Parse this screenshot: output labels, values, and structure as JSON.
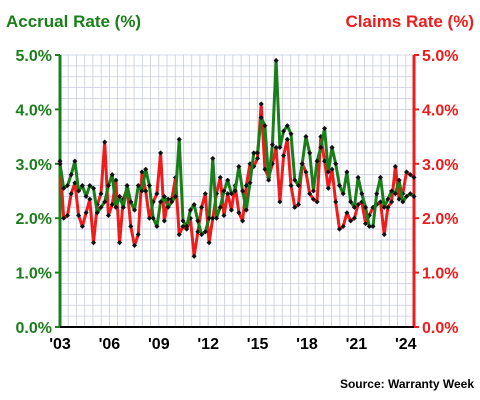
{
  "chart_data": {
    "type": "line",
    "left_axis_title": "Accrual Rate (%)",
    "right_axis_title": "Claims Rate (%)",
    "source": "Source: Warranty Week",
    "ylim": [
      0,
      5
    ],
    "y_ticks": [
      "0.0%",
      "1.0%",
      "2.0%",
      "3.0%",
      "4.0%",
      "5.0%"
    ],
    "x_ticks": [
      "'03",
      "'06",
      "'09",
      "'12",
      "'15",
      "'18",
      "'21",
      "'24"
    ],
    "x_start_year": 2003,
    "x_end_year": 2024.5,
    "grid": true,
    "colors": {
      "accrual": "#1a7f1a",
      "claims": "#ee1c1c",
      "grid": "#c8cce0",
      "markers": "#111111"
    },
    "series": [
      {
        "name": "Accrual Rate (%)",
        "axis": "left",
        "values": [
          3.0,
          2.55,
          2.6,
          2.8,
          3.05,
          2.5,
          2.6,
          2.4,
          2.6,
          2.55,
          2.1,
          2.2,
          2.3,
          2.6,
          2.8,
          2.2,
          2.4,
          2.2,
          2.6,
          2.3,
          2.15,
          2.6,
          2.5,
          2.9,
          2.6,
          2.0,
          1.85,
          2.3,
          2.4,
          2.2,
          2.3,
          2.4,
          3.45,
          1.95,
          1.85,
          2.15,
          2.25,
          1.95,
          1.7,
          1.75,
          2.0,
          3.1,
          2.0,
          2.2,
          2.5,
          2.7,
          2.45,
          2.5,
          2.95,
          2.5,
          2.15,
          2.65,
          3.2,
          3.2,
          3.85,
          3.7,
          2.7,
          3.35,
          4.9,
          3.3,
          3.6,
          3.7,
          3.55,
          2.7,
          2.6,
          3.0,
          3.5,
          3.2,
          2.5,
          3.05,
          3.3,
          3.65,
          2.85,
          3.3,
          3.0,
          2.6,
          2.45,
          2.85,
          2.3,
          2.2,
          2.75,
          2.45,
          2.2,
          1.85,
          1.85,
          2.45,
          2.75,
          2.2,
          2.35,
          2.5,
          2.45,
          2.7,
          2.3,
          2.4,
          2.45,
          2.4
        ]
      },
      {
        "name": "Claims Rate (%)",
        "axis": "right",
        "values": [
          3.05,
          2.0,
          2.05,
          2.45,
          2.65,
          2.05,
          1.85,
          2.1,
          2.35,
          1.55,
          2.25,
          2.45,
          3.4,
          2.05,
          2.25,
          2.7,
          1.55,
          2.35,
          2.55,
          1.85,
          1.5,
          1.7,
          2.85,
          2.5,
          2.0,
          2.3,
          2.45,
          3.2,
          1.95,
          2.35,
          2.35,
          2.75,
          1.7,
          1.85,
          1.8,
          2.0,
          1.3,
          1.75,
          2.2,
          2.45,
          1.55,
          2.0,
          2.45,
          2.75,
          2.05,
          2.45,
          2.15,
          2.6,
          2.1,
          1.95,
          2.6,
          3.0,
          2.95,
          3.1,
          4.1,
          2.9,
          2.75,
          3.0,
          3.3,
          2.3,
          3.15,
          3.45,
          2.6,
          2.2,
          2.25,
          3.0,
          2.85,
          2.45,
          2.35,
          2.3,
          3.5,
          3.05,
          2.55,
          2.9,
          2.3,
          1.8,
          1.85,
          2.1,
          1.95,
          2.0,
          2.25,
          2.3,
          1.9,
          2.05,
          2.2,
          2.25,
          2.3,
          1.7,
          2.2,
          2.3,
          2.95,
          2.35,
          2.45,
          2.85,
          2.8,
          2.75
        ]
      }
    ]
  }
}
